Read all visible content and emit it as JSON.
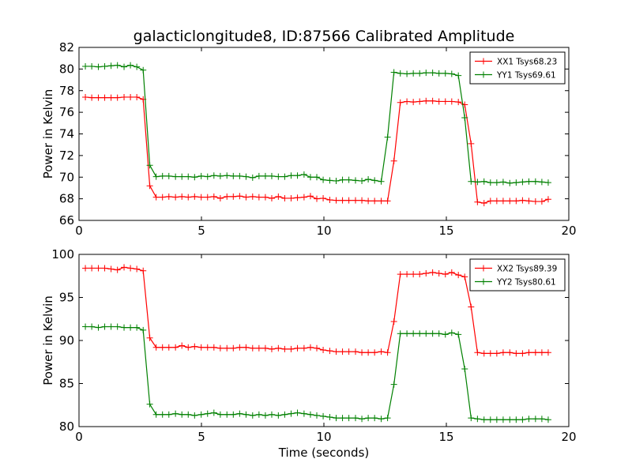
{
  "figure": {
    "title": "galacticlongitude8, ID:87566 Calibrated Amplitude",
    "xlabel": "Time (seconds)"
  },
  "chart_data": [
    {
      "type": "line",
      "title": "galacticlongitude8, ID:87566 Calibrated Amplitude",
      "xlabel": "",
      "ylabel": "Power in Kelvin",
      "xlim": [
        0,
        20
      ],
      "ylim": [
        66,
        82
      ],
      "xticks": [
        0,
        5,
        10,
        15,
        20
      ],
      "yticks": [
        66,
        68,
        70,
        72,
        74,
        76,
        78,
        80,
        82
      ],
      "grid": false,
      "legend_position": "top-right",
      "series": [
        {
          "name": "XX1 Tsys68.23",
          "color": "#ff0000",
          "marker": "+",
          "x": [
            0.26,
            0.52,
            0.79,
            1.05,
            1.31,
            1.57,
            1.84,
            2.1,
            2.36,
            2.62,
            2.89,
            3.15,
            3.41,
            3.67,
            3.94,
            4.2,
            4.46,
            4.72,
            4.99,
            5.25,
            5.51,
            5.77,
            6.04,
            6.3,
            6.56,
            6.82,
            7.09,
            7.35,
            7.61,
            7.87,
            8.14,
            8.4,
            8.66,
            8.92,
            9.19,
            9.45,
            9.71,
            9.97,
            10.24,
            10.5,
            10.76,
            11.02,
            11.29,
            11.55,
            11.81,
            12.07,
            12.34,
            12.6,
            12.86,
            13.12,
            13.39,
            13.65,
            13.91,
            14.17,
            14.44,
            14.7,
            14.96,
            15.22,
            15.49,
            15.75,
            16.01,
            16.27,
            16.54,
            16.8,
            17.06,
            17.32,
            17.59,
            17.85,
            18.11,
            18.37,
            18.64,
            18.9,
            19.16
          ],
          "y": [
            77.4,
            77.35,
            77.35,
            77.35,
            77.35,
            77.35,
            77.4,
            77.4,
            77.4,
            77.2,
            69.2,
            68.15,
            68.15,
            68.2,
            68.15,
            68.2,
            68.15,
            68.2,
            68.15,
            68.15,
            68.2,
            68.05,
            68.2,
            68.2,
            68.25,
            68.15,
            68.2,
            68.15,
            68.15,
            68.05,
            68.2,
            68.05,
            68.05,
            68.1,
            68.15,
            68.25,
            68.0,
            68.05,
            67.9,
            67.85,
            67.85,
            67.85,
            67.85,
            67.85,
            67.8,
            67.8,
            67.8,
            67.8,
            71.5,
            76.9,
            77.0,
            76.95,
            77.0,
            77.05,
            77.05,
            77.0,
            77.0,
            77.0,
            76.95,
            76.7,
            73.1,
            67.7,
            67.6,
            67.8,
            67.8,
            67.8,
            67.8,
            67.8,
            67.85,
            67.8,
            67.75,
            67.75,
            67.95
          ]
        },
        {
          "name": "YY1 Tsys69.61",
          "color": "#008000",
          "marker": "+",
          "x": [
            0.26,
            0.52,
            0.79,
            1.05,
            1.31,
            1.57,
            1.84,
            2.1,
            2.36,
            2.62,
            2.89,
            3.15,
            3.41,
            3.67,
            3.94,
            4.2,
            4.46,
            4.72,
            4.99,
            5.25,
            5.51,
            5.77,
            6.04,
            6.3,
            6.56,
            6.82,
            7.09,
            7.35,
            7.61,
            7.87,
            8.14,
            8.4,
            8.66,
            8.92,
            9.19,
            9.45,
            9.71,
            9.97,
            10.24,
            10.5,
            10.76,
            11.02,
            11.29,
            11.55,
            11.81,
            12.07,
            12.34,
            12.6,
            12.86,
            13.12,
            13.39,
            13.65,
            13.91,
            14.17,
            14.44,
            14.7,
            14.96,
            15.22,
            15.49,
            15.75,
            16.01,
            16.27,
            16.54,
            16.8,
            17.06,
            17.32,
            17.59,
            17.85,
            18.11,
            18.37,
            18.64,
            18.9,
            19.16
          ],
          "y": [
            80.25,
            80.25,
            80.2,
            80.25,
            80.3,
            80.35,
            80.2,
            80.35,
            80.2,
            79.9,
            71.1,
            70.05,
            70.1,
            70.1,
            70.05,
            70.05,
            70.05,
            70.0,
            70.1,
            70.05,
            70.15,
            70.1,
            70.15,
            70.1,
            70.1,
            70.05,
            69.95,
            70.1,
            70.1,
            70.1,
            70.05,
            70.05,
            70.15,
            70.15,
            70.25,
            70.0,
            70.0,
            69.75,
            69.7,
            69.65,
            69.75,
            69.75,
            69.7,
            69.65,
            69.8,
            69.7,
            69.6,
            73.7,
            79.7,
            79.6,
            79.55,
            79.6,
            79.6,
            79.65,
            79.65,
            79.6,
            79.6,
            79.55,
            79.4,
            75.5,
            69.6,
            69.55,
            69.6,
            69.5,
            69.5,
            69.55,
            69.45,
            69.5,
            69.55,
            69.6,
            69.6,
            69.55,
            69.5
          ]
        }
      ]
    },
    {
      "type": "line",
      "title": "",
      "xlabel": "Time (seconds)",
      "ylabel": "Power in Kelvin",
      "xlim": [
        0,
        20
      ],
      "ylim": [
        80,
        100
      ],
      "xticks": [
        0,
        5,
        10,
        15,
        20
      ],
      "yticks": [
        80,
        85,
        90,
        95,
        100
      ],
      "grid": false,
      "legend_position": "top-right",
      "series": [
        {
          "name": "XX2 Tsys89.39",
          "color": "#ff0000",
          "marker": "+",
          "x": [
            0.26,
            0.52,
            0.79,
            1.05,
            1.31,
            1.57,
            1.84,
            2.1,
            2.36,
            2.62,
            2.89,
            3.15,
            3.41,
            3.67,
            3.94,
            4.2,
            4.46,
            4.72,
            4.99,
            5.25,
            5.51,
            5.77,
            6.04,
            6.3,
            6.56,
            6.82,
            7.09,
            7.35,
            7.61,
            7.87,
            8.14,
            8.4,
            8.66,
            8.92,
            9.19,
            9.45,
            9.71,
            9.97,
            10.24,
            10.5,
            10.76,
            11.02,
            11.29,
            11.55,
            11.81,
            12.07,
            12.34,
            12.6,
            12.86,
            13.12,
            13.39,
            13.65,
            13.91,
            14.17,
            14.44,
            14.7,
            14.96,
            15.22,
            15.49,
            15.75,
            16.01,
            16.27,
            16.54,
            16.8,
            17.06,
            17.32,
            17.59,
            17.85,
            18.11,
            18.37,
            18.64,
            18.9,
            19.16
          ],
          "y": [
            98.4,
            98.4,
            98.4,
            98.4,
            98.3,
            98.2,
            98.5,
            98.4,
            98.3,
            98.1,
            90.3,
            89.2,
            89.2,
            89.2,
            89.2,
            89.4,
            89.2,
            89.3,
            89.2,
            89.2,
            89.2,
            89.1,
            89.1,
            89.1,
            89.2,
            89.2,
            89.1,
            89.1,
            89.1,
            89.0,
            89.1,
            89.0,
            89.0,
            89.1,
            89.1,
            89.2,
            89.1,
            88.9,
            88.8,
            88.7,
            88.7,
            88.7,
            88.7,
            88.6,
            88.6,
            88.6,
            88.7,
            88.6,
            92.2,
            97.7,
            97.7,
            97.7,
            97.7,
            97.8,
            97.9,
            97.8,
            97.7,
            97.9,
            97.6,
            97.4,
            93.9,
            88.6,
            88.5,
            88.5,
            88.5,
            88.6,
            88.6,
            88.5,
            88.5,
            88.6,
            88.6,
            88.6,
            88.6
          ]
        },
        {
          "name": "YY2 Tsys80.61",
          "color": "#008000",
          "marker": "+",
          "x": [
            0.26,
            0.52,
            0.79,
            1.05,
            1.31,
            1.57,
            1.84,
            2.1,
            2.36,
            2.62,
            2.89,
            3.15,
            3.41,
            3.67,
            3.94,
            4.2,
            4.46,
            4.72,
            4.99,
            5.25,
            5.51,
            5.77,
            6.04,
            6.3,
            6.56,
            6.82,
            7.09,
            7.35,
            7.61,
            7.87,
            8.14,
            8.4,
            8.66,
            8.92,
            9.19,
            9.45,
            9.71,
            9.97,
            10.24,
            10.5,
            10.76,
            11.02,
            11.29,
            11.55,
            11.81,
            12.07,
            12.34,
            12.6,
            12.86,
            13.12,
            13.39,
            13.65,
            13.91,
            14.17,
            14.44,
            14.7,
            14.96,
            15.22,
            15.49,
            15.75,
            16.01,
            16.27,
            16.54,
            16.8,
            17.06,
            17.32,
            17.59,
            17.85,
            18.11,
            18.37,
            18.64,
            18.9,
            19.16
          ],
          "y": [
            91.6,
            91.6,
            91.5,
            91.6,
            91.6,
            91.6,
            91.5,
            91.5,
            91.5,
            91.2,
            82.6,
            81.4,
            81.4,
            81.4,
            81.5,
            81.4,
            81.4,
            81.3,
            81.4,
            81.5,
            81.6,
            81.4,
            81.4,
            81.4,
            81.5,
            81.4,
            81.3,
            81.4,
            81.3,
            81.4,
            81.3,
            81.4,
            81.5,
            81.6,
            81.5,
            81.4,
            81.3,
            81.2,
            81.1,
            81.0,
            81.0,
            81.0,
            81.0,
            80.9,
            81.0,
            81.0,
            80.9,
            81.0,
            84.9,
            90.8,
            90.8,
            90.8,
            90.8,
            90.8,
            90.8,
            90.8,
            90.7,
            90.9,
            90.7,
            86.7,
            81.0,
            80.9,
            80.8,
            80.8,
            80.8,
            80.8,
            80.8,
            80.8,
            80.8,
            80.9,
            80.9,
            80.9,
            80.8
          ]
        }
      ]
    }
  ]
}
